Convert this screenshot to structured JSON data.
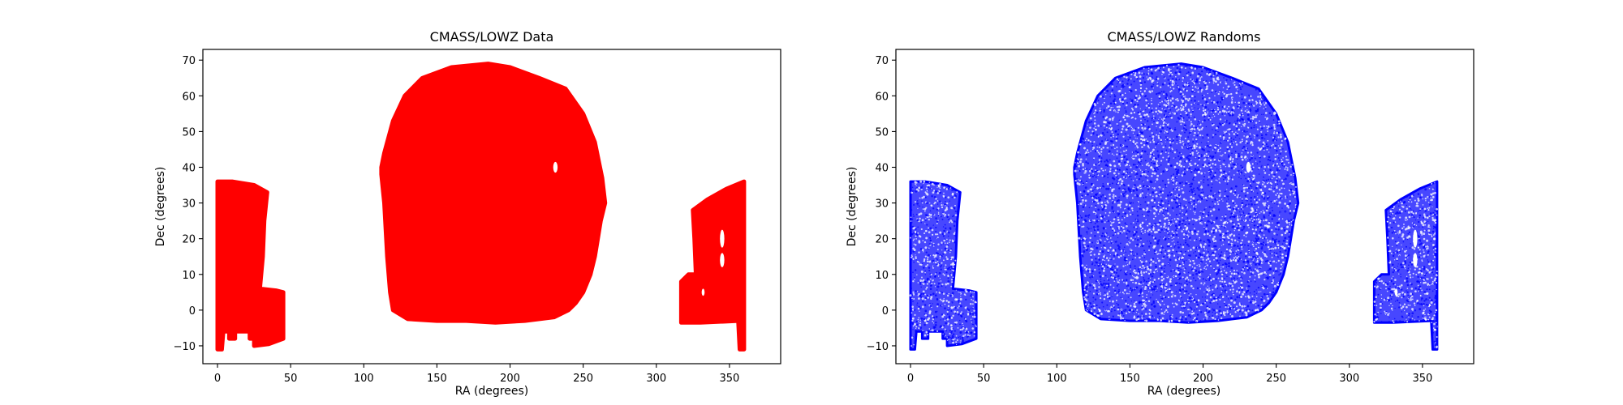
{
  "chart_data": [
    {
      "type": "scatter",
      "title": "CMASS/LOWZ Data",
      "xlabel": "RA (degrees)",
      "ylabel": "Dec (degrees)",
      "xlim": [
        -10,
        385
      ],
      "ylim": [
        -15,
        73
      ],
      "xticks": [
        0,
        50,
        100,
        150,
        200,
        250,
        300,
        350
      ],
      "yticks": [
        -10,
        0,
        10,
        20,
        30,
        40,
        50,
        60,
        70
      ],
      "grid": false,
      "series": [
        {
          "color": "#ff0000",
          "point_density": "dense",
          "regions": [
            {
              "kind": "polygon",
              "points": [
                [
                  0,
                  36
                ],
                [
                  10,
                  36
                ],
                [
                  25,
                  35
                ],
                [
                  34,
                  33
                ],
                [
                  32,
                  25
                ],
                [
                  31,
                  15
                ],
                [
                  29,
                  6
                ],
                [
                  40,
                  5.5
                ],
                [
                  45,
                  5
                ],
                [
                  45,
                  -8
                ],
                [
                  35,
                  -9.5
                ],
                [
                  25,
                  -10
                ],
                [
                  25,
                  -8
                ],
                [
                  22,
                  -8
                ],
                [
                  22,
                  -6
                ],
                [
                  12,
                  -6
                ],
                [
                  12,
                  -8
                ],
                [
                  8,
                  -8
                ],
                [
                  8,
                  -6
                ],
                [
                  4,
                  -6
                ],
                [
                  3,
                  -11
                ],
                [
                  0,
                  -11
                ]
              ]
            },
            {
              "kind": "polygon",
              "points": [
                [
                  112,
                  40
                ],
                [
                  114,
                  44
                ],
                [
                  120,
                  53
                ],
                [
                  128,
                  60
                ],
                [
                  140,
                  65
                ],
                [
                  160,
                  68
                ],
                [
                  185,
                  69
                ],
                [
                  200,
                  68
                ],
                [
                  220,
                  65
                ],
                [
                  238,
                  62
                ],
                [
                  250,
                  55
                ],
                [
                  258,
                  47
                ],
                [
                  263,
                  37
                ],
                [
                  265,
                  30
                ],
                [
                  262,
                  25
                ],
                [
                  260,
                  20
                ],
                [
                  258,
                  15
                ],
                [
                  255,
                  10
                ],
                [
                  250,
                  5
                ],
                [
                  245,
                  2
                ],
                [
                  240,
                  0
                ],
                [
                  230,
                  -2
                ],
                [
                  210,
                  -3
                ],
                [
                  190,
                  -3.5
                ],
                [
                  170,
                  -3
                ],
                [
                  150,
                  -3
                ],
                [
                  130,
                  -2.5
                ],
                [
                  120,
                  0
                ],
                [
                  118,
                  5
                ],
                [
                  116,
                  15
                ],
                [
                  114,
                  30
                ],
                [
                  112,
                  38
                ]
              ]
            },
            {
              "kind": "polygon",
              "points": [
                [
                  325,
                  28
                ],
                [
                  335,
                  31
                ],
                [
                  348,
                  34
                ],
                [
                  360,
                  36
                ],
                [
                  360,
                  -11
                ],
                [
                  357,
                  -11
                ],
                [
                  356,
                  -3
                ],
                [
                  330,
                  -3.5
                ],
                [
                  317,
                  -3.5
                ],
                [
                  317,
                  8
                ],
                [
                  322,
                  10
                ],
                [
                  327,
                  10
                ],
                [
                  326,
                  20
                ]
              ]
            }
          ],
          "holes": [
            {
              "kind": "ellipse",
              "x": 231,
              "y": 40,
              "rx": 1.5,
              "ry": 1.5
            },
            {
              "kind": "ellipse",
              "x": 345,
              "y": 20,
              "rx": 1.5,
              "ry": 2.5
            },
            {
              "kind": "ellipse",
              "x": 345,
              "y": 14,
              "rx": 1.5,
              "ry": 2
            },
            {
              "kind": "ellipse",
              "x": 332,
              "y": 5,
              "rx": 1,
              "ry": 1
            }
          ]
        }
      ]
    },
    {
      "type": "scatter",
      "title": "CMASS/LOWZ Randoms",
      "xlabel": "RA (degrees)",
      "ylabel": "Dec (degrees)",
      "xlim": [
        -10,
        385
      ],
      "ylim": [
        -15,
        73
      ],
      "xticks": [
        0,
        50,
        100,
        150,
        200,
        250,
        300,
        350
      ],
      "yticks": [
        -10,
        0,
        10,
        20,
        30,
        40,
        50,
        60,
        70
      ],
      "grid": false,
      "series": [
        {
          "color": "#0000ff",
          "point_density": "sparse",
          "regions": [
            {
              "kind": "polygon",
              "points": [
                [
                  0,
                  36
                ],
                [
                  10,
                  36
                ],
                [
                  25,
                  35
                ],
                [
                  34,
                  33
                ],
                [
                  32,
                  25
                ],
                [
                  31,
                  15
                ],
                [
                  29,
                  6
                ],
                [
                  40,
                  5.5
                ],
                [
                  45,
                  5
                ],
                [
                  45,
                  -8
                ],
                [
                  35,
                  -9.5
                ],
                [
                  25,
                  -10
                ],
                [
                  25,
                  -8
                ],
                [
                  22,
                  -8
                ],
                [
                  22,
                  -6
                ],
                [
                  12,
                  -6
                ],
                [
                  12,
                  -8
                ],
                [
                  8,
                  -8
                ],
                [
                  8,
                  -6
                ],
                [
                  4,
                  -6
                ],
                [
                  3,
                  -11
                ],
                [
                  0,
                  -11
                ]
              ]
            },
            {
              "kind": "polygon",
              "points": [
                [
                  112,
                  40
                ],
                [
                  114,
                  44
                ],
                [
                  120,
                  53
                ],
                [
                  128,
                  60
                ],
                [
                  140,
                  65
                ],
                [
                  160,
                  68
                ],
                [
                  185,
                  69
                ],
                [
                  200,
                  68
                ],
                [
                  220,
                  65
                ],
                [
                  238,
                  62
                ],
                [
                  250,
                  55
                ],
                [
                  258,
                  47
                ],
                [
                  263,
                  37
                ],
                [
                  265,
                  30
                ],
                [
                  262,
                  25
                ],
                [
                  260,
                  20
                ],
                [
                  258,
                  15
                ],
                [
                  255,
                  10
                ],
                [
                  250,
                  5
                ],
                [
                  245,
                  2
                ],
                [
                  240,
                  0
                ],
                [
                  230,
                  -2
                ],
                [
                  210,
                  -3
                ],
                [
                  190,
                  -3.5
                ],
                [
                  170,
                  -3
                ],
                [
                  150,
                  -3
                ],
                [
                  130,
                  -2.5
                ],
                [
                  120,
                  0
                ],
                [
                  118,
                  5
                ],
                [
                  116,
                  15
                ],
                [
                  114,
                  30
                ],
                [
                  112,
                  38
                ]
              ]
            },
            {
              "kind": "polygon",
              "points": [
                [
                  325,
                  28
                ],
                [
                  335,
                  31
                ],
                [
                  348,
                  34
                ],
                [
                  360,
                  36
                ],
                [
                  360,
                  -11
                ],
                [
                  357,
                  -11
                ],
                [
                  356,
                  -3
                ],
                [
                  330,
                  -3.5
                ],
                [
                  317,
                  -3.5
                ],
                [
                  317,
                  8
                ],
                [
                  322,
                  10
                ],
                [
                  327,
                  10
                ],
                [
                  326,
                  20
                ]
              ]
            }
          ],
          "holes": [
            {
              "kind": "ellipse",
              "x": 231,
              "y": 40,
              "rx": 1.5,
              "ry": 1.5
            },
            {
              "kind": "ellipse",
              "x": 345,
              "y": 20,
              "rx": 1.5,
              "ry": 2.5
            },
            {
              "kind": "ellipse",
              "x": 345,
              "y": 14,
              "rx": 1.5,
              "ry": 2
            },
            {
              "kind": "ellipse",
              "x": 332,
              "y": 5,
              "rx": 1,
              "ry": 1
            }
          ]
        }
      ]
    }
  ]
}
